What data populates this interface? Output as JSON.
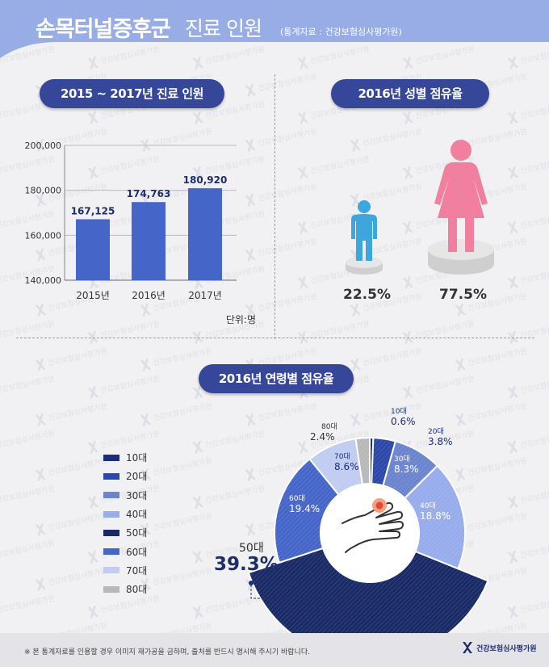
{
  "header": {
    "title_bold": "손목터널증후군",
    "title_rest": "진료 인원",
    "source": "(통계자료 : 건강보험심사평가원)"
  },
  "watermark_text": "건강보험심사평가원",
  "sections": {
    "patients": "2015 ~ 2017년 진료 인원",
    "gender": "2016년 성별 점유율",
    "age": "2016년 연령별 점유율"
  },
  "colors": {
    "header_bg": "#98ace6",
    "pill_bg": "#36479a",
    "bar": "#4565c9",
    "male": "#3ca6dd",
    "female": "#f07fa0"
  },
  "chart_data": [
    {
      "type": "bar",
      "categories": [
        "2015년",
        "2016년",
        "2017년"
      ],
      "values": [
        167125,
        174763,
        180920
      ],
      "value_labels": [
        "167,125",
        "174,763",
        "180,920"
      ],
      "y_ticks": [
        "200,000",
        "180,000",
        "160,000",
        "140,000"
      ],
      "ylim": [
        140000,
        200000
      ],
      "unit": "단위:명",
      "grid": true
    },
    {
      "type": "pie",
      "labels": [
        "남성",
        "여성"
      ],
      "values": [
        22.5,
        77.5
      ],
      "value_labels": [
        "22.5%",
        "77.5%"
      ],
      "icons": [
        "male-figure-icon",
        "female-figure-icon"
      ]
    },
    {
      "type": "pie",
      "labels": [
        "10대",
        "20대",
        "30대",
        "40대",
        "50대",
        "60대",
        "70대",
        "80대"
      ],
      "values": [
        0.6,
        3.8,
        8.3,
        18.8,
        39.3,
        19.4,
        8.6,
        2.4
      ],
      "value_labels": [
        "0.6%",
        "3.8%",
        "8.3%",
        "18.8%",
        "39.3%",
        "19.4%",
        "8.6%",
        "2.4%"
      ],
      "colors": [
        "#1c2e7a",
        "#2c48a8",
        "#6b84cf",
        "#97acec",
        "#1a2a66",
        "#4565c9",
        "#c0ccf0",
        "#b8b8b8"
      ],
      "legend": [
        "10대",
        "20대",
        "30대",
        "40대",
        "50대",
        "60대",
        "70대",
        "80대"
      ],
      "center_icon": "wrist-pain-icon"
    }
  ],
  "footer": {
    "note": "※ 본 통계자료를 인용할 경우 이미지 재가공을 금하며, 출처를 반드시 명시해 주시기 바랍니다.",
    "logo": "건강보험심사평가원"
  }
}
